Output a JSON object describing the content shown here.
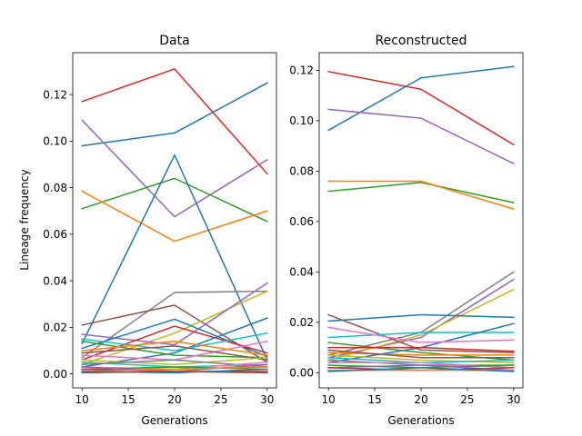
{
  "chart_data": [
    {
      "type": "line",
      "title": "Data",
      "xlabel": "Generations",
      "ylabel": "Lineage frequency",
      "x": [
        10,
        20,
        30
      ],
      "xlim": [
        9,
        31
      ],
      "ylim": [
        -0.006,
        0.138
      ],
      "xticks": [
        10,
        15,
        20,
        25,
        30
      ],
      "xtick_labels": [
        "10",
        "15",
        "20",
        "25",
        "30"
      ],
      "yticks": [
        0,
        0.02,
        0.04,
        0.06,
        0.08,
        0.1,
        0.12
      ],
      "ytick_labels": [
        "0.00",
        "0.02",
        "0.04",
        "0.06",
        "0.08",
        "0.10",
        "0.12"
      ],
      "grid": false,
      "series": [
        {
          "color": "#d62728",
          "values": [
            0.117,
            0.131,
            0.086
          ]
        },
        {
          "color": "#1f77b4",
          "values": [
            0.098,
            0.1035,
            0.125
          ]
        },
        {
          "color": "#9467bd",
          "values": [
            0.109,
            0.0675,
            0.092
          ]
        },
        {
          "color": "#2ca02c",
          "values": [
            0.071,
            0.084,
            0.0655
          ]
        },
        {
          "color": "#ff7f0e",
          "values": [
            0.0785,
            0.057,
            0.07
          ]
        },
        {
          "color": "#1f77b4",
          "values": [
            0.013,
            0.094,
            0.006
          ]
        },
        {
          "color": "#7f7f7f",
          "values": [
            0.007,
            0.035,
            0.0355
          ]
        },
        {
          "color": "#8c564b",
          "values": [
            0.021,
            0.0295,
            0.005
          ]
        },
        {
          "color": "#bcbd22",
          "values": [
            0.004,
            0.0175,
            0.0355
          ]
        },
        {
          "color": "#9467bd",
          "values": [
            0.017,
            0.0125,
            0.039
          ]
        },
        {
          "color": "#1f77b4",
          "values": [
            0.011,
            0.0235,
            0.0075
          ]
        },
        {
          "color": "#d62728",
          "values": [
            0.006,
            0.0205,
            0.009
          ]
        },
        {
          "color": "#1f77b4",
          "values": [
            0.003,
            0.009,
            0.024
          ]
        },
        {
          "color": "#17becf",
          "values": [
            0.015,
            0.01,
            0.0175
          ]
        },
        {
          "color": "#2ca02c",
          "values": [
            0.014,
            0.008,
            0.007
          ]
        },
        {
          "color": "#e377c2",
          "values": [
            0.008,
            0.006,
            0.014
          ]
        },
        {
          "color": "#ff7f0e",
          "values": [
            0.01,
            0.014,
            0.008
          ]
        },
        {
          "color": "#8c564b",
          "values": [
            0.009,
            0.012,
            0.006
          ]
        },
        {
          "color": "#bcbd22",
          "values": [
            0.006,
            0.004,
            0.007
          ]
        },
        {
          "color": "#17becf",
          "values": [
            0.005,
            0.003,
            0.004
          ]
        },
        {
          "color": "#7f7f7f",
          "values": [
            0.004,
            0.006,
            0.003
          ]
        },
        {
          "color": "#e377c2",
          "values": [
            0.003,
            0.002,
            0.005
          ]
        },
        {
          "color": "#2ca02c",
          "values": [
            0.002,
            0.003,
            0.002
          ]
        },
        {
          "color": "#9467bd",
          "values": [
            0.003,
            0.001,
            0.004
          ]
        },
        {
          "color": "#d62728",
          "values": [
            0.002,
            0.001,
            0.001
          ]
        },
        {
          "color": "#ff7f0e",
          "values": [
            0.001,
            0.002,
            0.003
          ]
        },
        {
          "color": "#1f77b4",
          "values": [
            0.001,
            0.0005,
            0.002
          ]
        },
        {
          "color": "#8c564b",
          "values": [
            0.0005,
            0.001,
            0.0005
          ]
        }
      ]
    },
    {
      "type": "line",
      "title": "Reconstructed",
      "xlabel": "Generations",
      "ylabel": "",
      "x": [
        10,
        20,
        30
      ],
      "xlim": [
        9,
        31
      ],
      "ylim": [
        -0.006,
        0.127
      ],
      "xticks": [
        10,
        15,
        20,
        25,
        30
      ],
      "xtick_labels": [
        "10",
        "15",
        "20",
        "25",
        "30"
      ],
      "yticks": [
        0,
        0.02,
        0.04,
        0.06,
        0.08,
        0.1,
        0.12
      ],
      "ytick_labels": [
        "0.00",
        "0.02",
        "0.04",
        "0.06",
        "0.08",
        "0.10",
        "0.12"
      ],
      "grid": false,
      "series": [
        {
          "color": "#d62728",
          "values": [
            0.1195,
            0.1125,
            0.0905
          ]
        },
        {
          "color": "#1f77b4",
          "values": [
            0.0962,
            0.117,
            0.1215
          ]
        },
        {
          "color": "#9467bd",
          "values": [
            0.1045,
            0.101,
            0.083
          ]
        },
        {
          "color": "#2ca02c",
          "values": [
            0.072,
            0.0755,
            0.0675
          ]
        },
        {
          "color": "#ff7f0e",
          "values": [
            0.076,
            0.076,
            0.065
          ]
        },
        {
          "color": "#7f7f7f",
          "values": [
            0.007,
            0.016,
            0.04
          ]
        },
        {
          "color": "#9467bd",
          "values": [
            0.006,
            0.014,
            0.037
          ]
        },
        {
          "color": "#bcbd22",
          "values": [
            0.005,
            0.015,
            0.033
          ]
        },
        {
          "color": "#1f77b4",
          "values": [
            0.0205,
            0.023,
            0.022
          ]
        },
        {
          "color": "#8c564b",
          "values": [
            0.023,
            0.009,
            0.008
          ]
        },
        {
          "color": "#17becf",
          "values": [
            0.014,
            0.016,
            0.016
          ]
        },
        {
          "color": "#1f77b4",
          "values": [
            0.004,
            0.01,
            0.0195
          ]
        },
        {
          "color": "#e377c2",
          "values": [
            0.018,
            0.012,
            0.013
          ]
        },
        {
          "color": "#2ca02c",
          "values": [
            0.012,
            0.008,
            0.005
          ]
        },
        {
          "color": "#d62728",
          "values": [
            0.01,
            0.01,
            0.0085
          ]
        },
        {
          "color": "#ff7f0e",
          "values": [
            0.008,
            0.007,
            0.007
          ]
        },
        {
          "color": "#8c564b",
          "values": [
            0.009,
            0.006,
            0.006
          ]
        },
        {
          "color": "#bcbd22",
          "values": [
            0.007,
            0.005,
            0.004
          ]
        },
        {
          "color": "#17becf",
          "values": [
            0.006,
            0.004,
            0.005
          ]
        },
        {
          "color": "#7f7f7f",
          "values": [
            0.005,
            0.003,
            0.003
          ]
        },
        {
          "color": "#e377c2",
          "values": [
            0.004,
            0.004,
            0.002
          ]
        },
        {
          "color": "#2ca02c",
          "values": [
            0.003,
            0.002,
            0.003
          ]
        },
        {
          "color": "#9467bd",
          "values": [
            0.002,
            0.003,
            0.001
          ]
        },
        {
          "color": "#d62728",
          "values": [
            0.002,
            0.001,
            0.002
          ]
        },
        {
          "color": "#ff7f0e",
          "values": [
            0.001,
            0.001,
            0.001
          ]
        },
        {
          "color": "#1f77b4",
          "values": [
            0.0005,
            0.002,
            0.0005
          ]
        }
      ]
    }
  ]
}
